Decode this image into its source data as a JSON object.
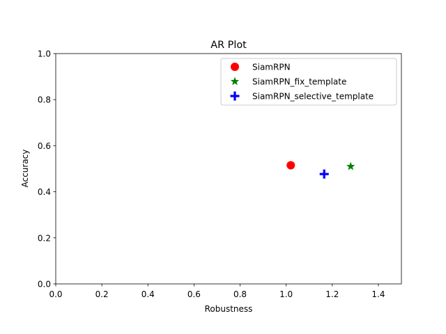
{
  "chart_data": {
    "type": "scatter",
    "title": "AR Plot",
    "xlabel": "Robustness",
    "ylabel": "Accuracy",
    "xlim": [
      0.0,
      1.5
    ],
    "ylim": [
      0.0,
      1.0
    ],
    "xticks": [
      "0.0",
      "0.2",
      "0.4",
      "0.6",
      "0.8",
      "1.0",
      "1.2",
      "1.4"
    ],
    "yticks": [
      "0.0",
      "0.2",
      "0.4",
      "0.6",
      "0.8",
      "1.0"
    ],
    "grid": false,
    "legend_position": "top-right",
    "series": [
      {
        "name": "SiamRPN",
        "x": 1.02,
        "y": 0.515,
        "marker": "circle",
        "color": "#ff0000"
      },
      {
        "name": "SiamRPN_fix_template",
        "x": 1.28,
        "y": 0.51,
        "marker": "star",
        "color": "#008000"
      },
      {
        "name": "SiamRPN_selective_template",
        "x": 1.165,
        "y": 0.477,
        "marker": "plus",
        "color": "#0000ff"
      }
    ]
  }
}
